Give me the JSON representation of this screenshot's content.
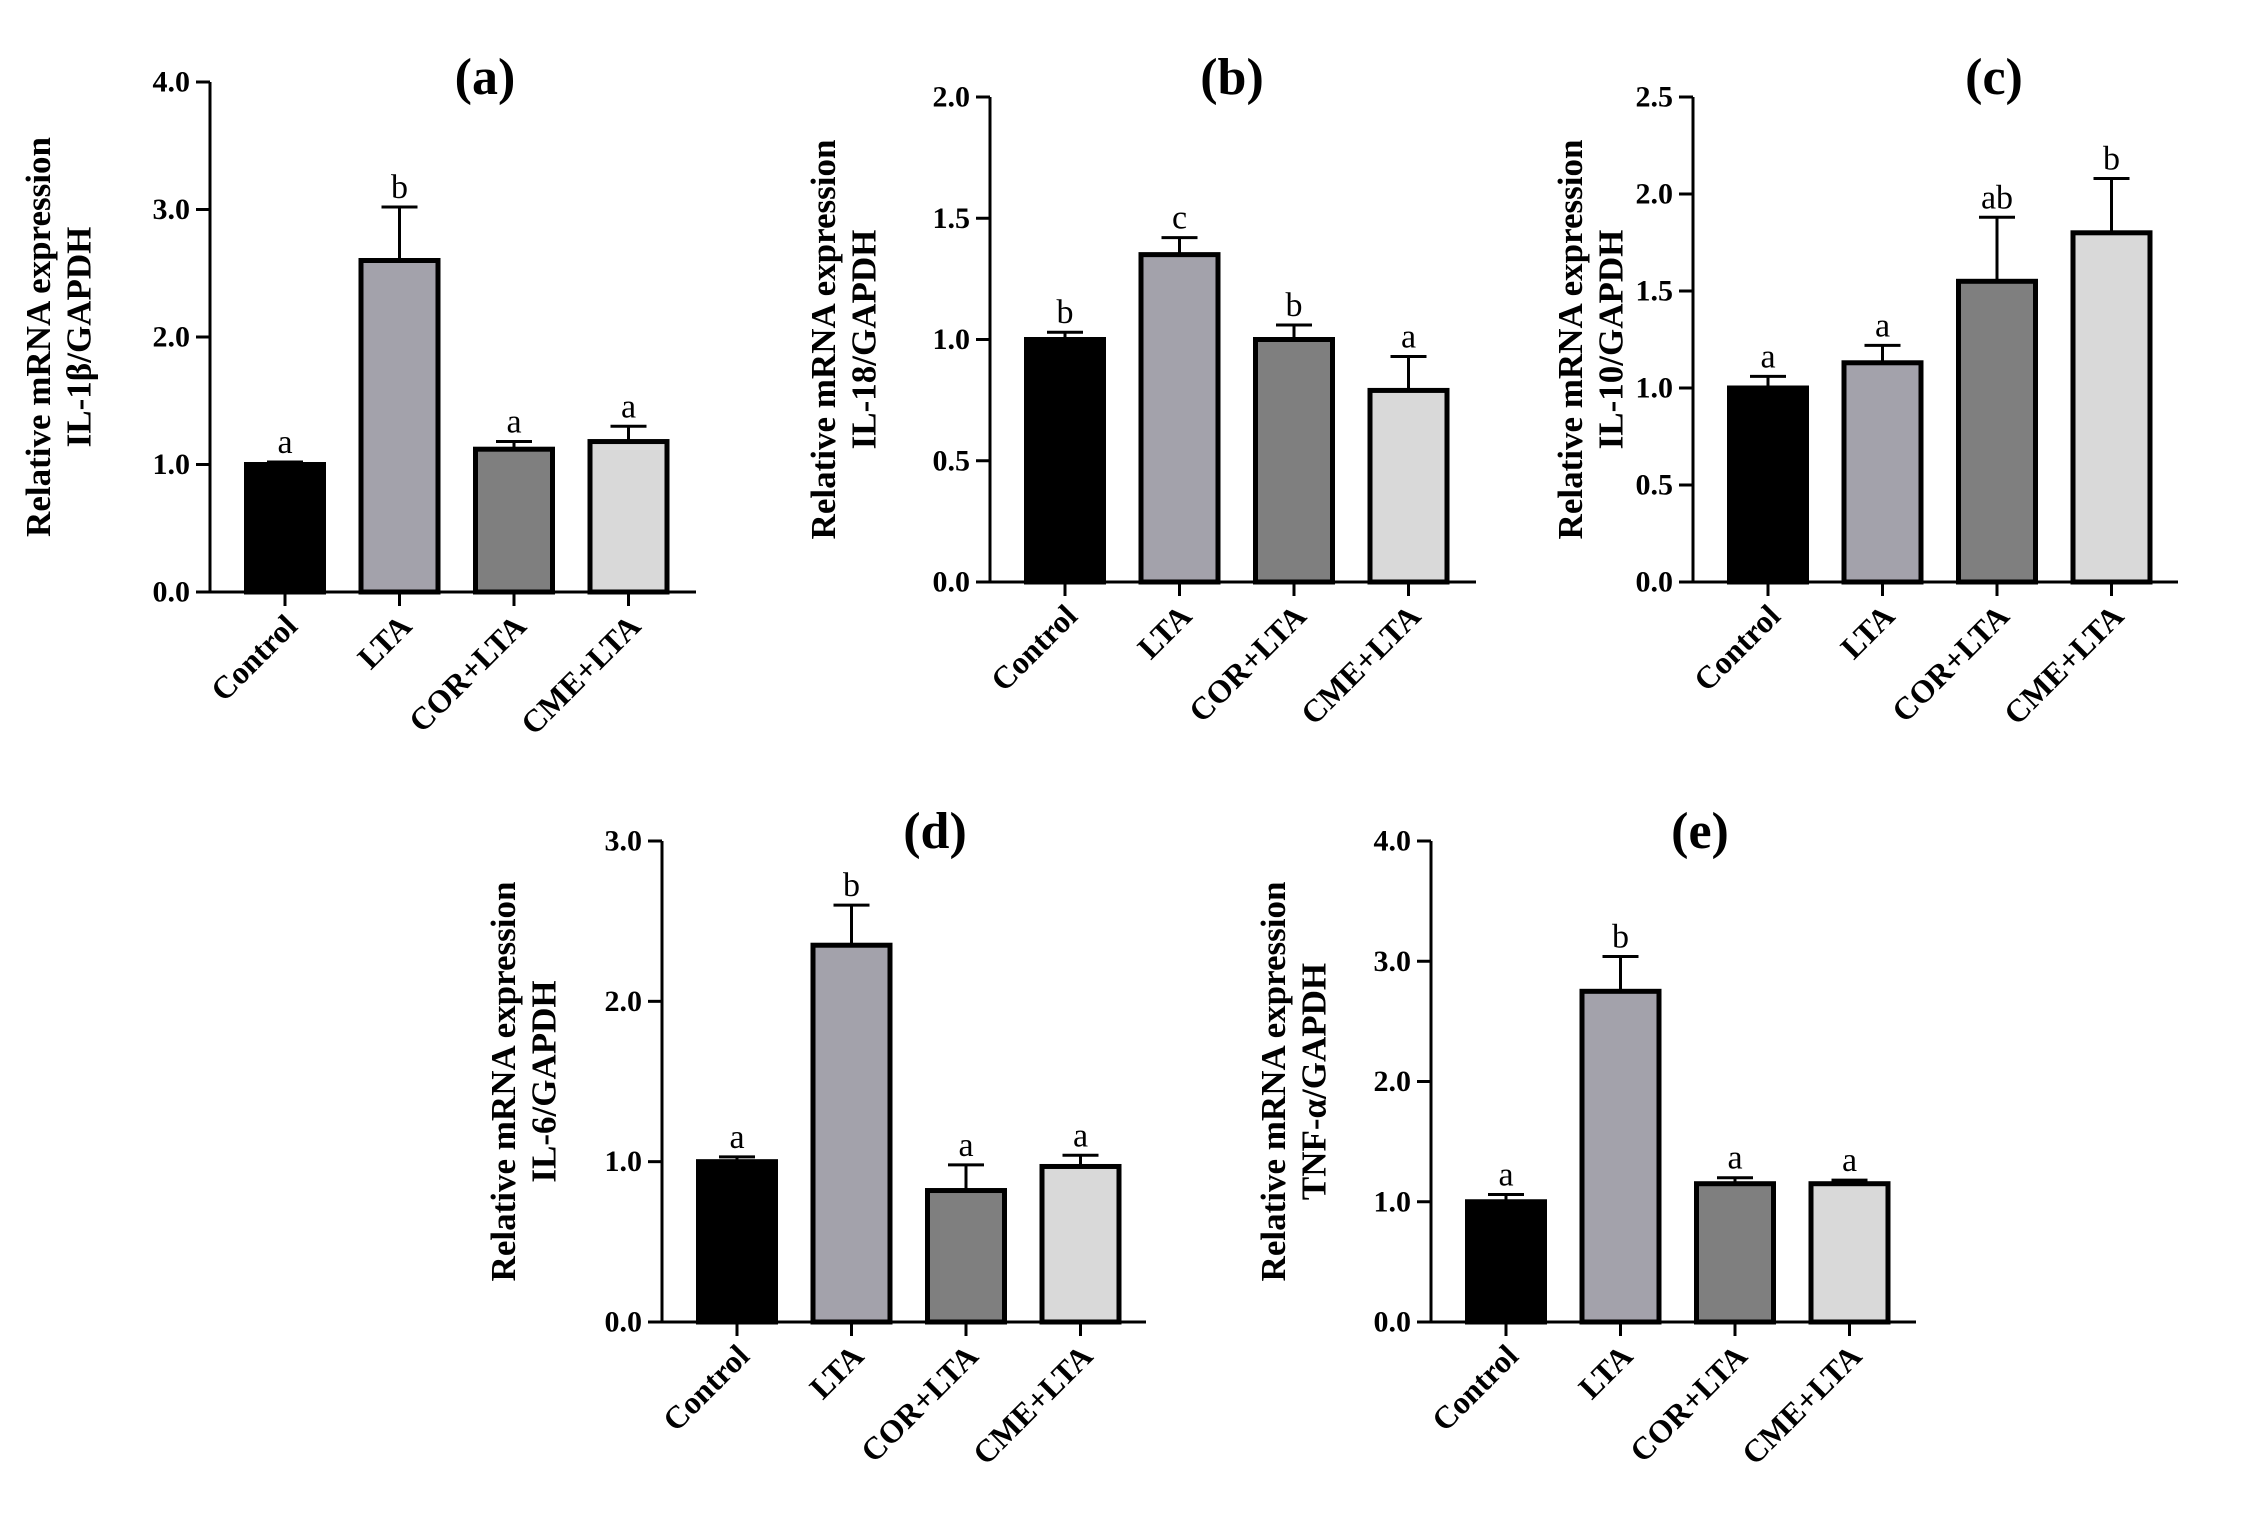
{
  "chart_data": [
    {
      "type": "bar",
      "panel": "(a)",
      "title": "(a)",
      "ylabel_line1": "Relative mRNA expression",
      "ylabel_line2": "IL-1β/GAPDH",
      "xlabel": "",
      "ylim": [
        0,
        4.0
      ],
      "yticks": [
        0,
        1,
        2,
        3,
        4
      ],
      "ytick_labels": [
        "0.0",
        "1.0",
        "2.0",
        "3.0",
        "4.0"
      ],
      "categories": [
        "Control",
        "LTA",
        "COR+LTA",
        "CME+LTA"
      ],
      "values": [
        1.0,
        2.6,
        1.12,
        1.18
      ],
      "errors": [
        0.02,
        0.42,
        0.06,
        0.12
      ],
      "significance": [
        "a",
        "b",
        "a",
        "a"
      ],
      "colors": [
        "#000000",
        "#a3a2ab",
        "#7f7f7f",
        "#d9d9d9"
      ]
    },
    {
      "type": "bar",
      "panel": "(b)",
      "title": "(b)",
      "ylabel_line1": "Relative mRNA expression",
      "ylabel_line2": "IL-18/GAPDH",
      "xlabel": "",
      "ylim": [
        0,
        2.0
      ],
      "yticks": [
        0,
        0.5,
        1,
        1.5,
        2
      ],
      "ytick_labels": [
        "0.0",
        "0.5",
        "1.0",
        "1.5",
        "2.0"
      ],
      "categories": [
        "Control",
        "LTA",
        "COR+LTA",
        "CME+LTA"
      ],
      "values": [
        1.0,
        1.35,
        1.0,
        0.79
      ],
      "errors": [
        0.03,
        0.07,
        0.06,
        0.14
      ],
      "significance": [
        "b",
        "c",
        "b",
        "a"
      ],
      "colors": [
        "#000000",
        "#a3a2ab",
        "#7f7f7f",
        "#d9d9d9"
      ]
    },
    {
      "type": "bar",
      "panel": "(c)",
      "title": "(c)",
      "ylabel_line1": "Relative mRNA expression",
      "ylabel_line2": "IL-10/GAPDH",
      "xlabel": "",
      "ylim": [
        0,
        2.5
      ],
      "yticks": [
        0,
        0.5,
        1,
        1.5,
        2,
        2.5
      ],
      "ytick_labels": [
        "0.0",
        "0.5",
        "1.0",
        "1.5",
        "2.0",
        "2.5"
      ],
      "categories": [
        "Control",
        "LTA",
        "COR+LTA",
        "CME+LTA"
      ],
      "values": [
        1.0,
        1.13,
        1.55,
        1.8
      ],
      "errors": [
        0.06,
        0.09,
        0.33,
        0.28
      ],
      "significance": [
        "a",
        "a",
        "ab",
        "b"
      ],
      "colors": [
        "#000000",
        "#a3a2ab",
        "#7f7f7f",
        "#d9d9d9"
      ]
    },
    {
      "type": "bar",
      "panel": "(d)",
      "title": "(d)",
      "ylabel_line1": "Relative mRNA expression",
      "ylabel_line2": "IL-6/GAPDH",
      "xlabel": "",
      "ylim": [
        0,
        3.0
      ],
      "yticks": [
        0,
        1,
        2,
        3
      ],
      "ytick_labels": [
        "0.0",
        "1.0",
        "2.0",
        "3.0"
      ],
      "categories": [
        "Control",
        "LTA",
        "COR+LTA",
        "CME+LTA"
      ],
      "values": [
        1.0,
        2.35,
        0.82,
        0.97
      ],
      "errors": [
        0.03,
        0.25,
        0.16,
        0.07
      ],
      "significance": [
        "a",
        "b",
        "a",
        "a"
      ],
      "colors": [
        "#000000",
        "#a3a2ab",
        "#7f7f7f",
        "#d9d9d9"
      ]
    },
    {
      "type": "bar",
      "panel": "(e)",
      "title": "(e)",
      "ylabel_line1": "Relative mRNA expression",
      "ylabel_line2": "TNF-α/GAPDH",
      "xlabel": "",
      "ylim": [
        0,
        4.0
      ],
      "yticks": [
        0,
        1,
        2,
        3,
        4
      ],
      "ytick_labels": [
        "0.0",
        "1.0",
        "2.0",
        "3.0",
        "4.0"
      ],
      "categories": [
        "Control",
        "LTA",
        "COR+LTA",
        "CME+LTA"
      ],
      "values": [
        1.0,
        2.75,
        1.15,
        1.15
      ],
      "errors": [
        0.06,
        0.29,
        0.05,
        0.03
      ],
      "significance": [
        "a",
        "b",
        "a",
        "a"
      ],
      "colors": [
        "#000000",
        "#a3a2ab",
        "#7f7f7f",
        "#d9d9d9"
      ]
    }
  ]
}
